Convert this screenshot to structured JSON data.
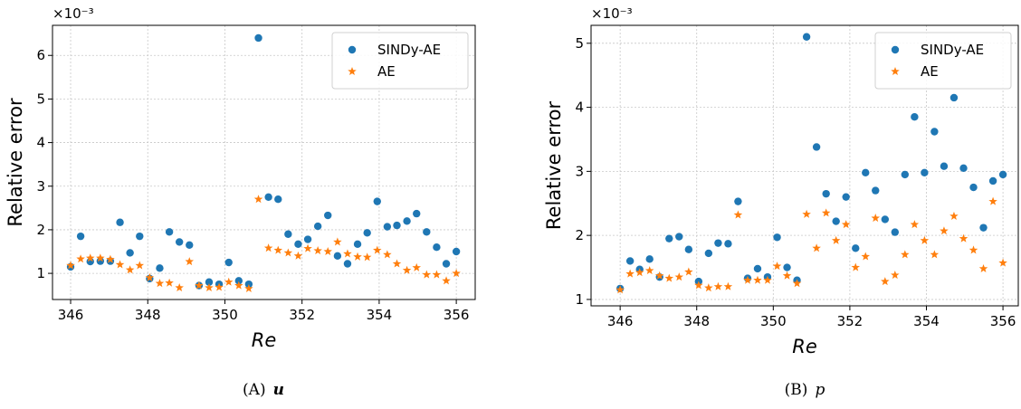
{
  "chart_data": [
    {
      "type": "scatter",
      "xlabel": "Re",
      "ylabel": "Relative error",
      "y_offset_label": "×10⁻³",
      "caption": {
        "label": "(A)",
        "symbol": "u"
      },
      "x": [
        346,
        346.26,
        346.51,
        346.77,
        347.03,
        347.28,
        347.54,
        347.79,
        348.05,
        348.31,
        348.56,
        348.82,
        349.08,
        349.33,
        349.59,
        349.85,
        350.1,
        350.36,
        350.62,
        350.87,
        351.13,
        351.38,
        351.64,
        351.9,
        352.15,
        352.41,
        352.67,
        352.92,
        353.18,
        353.44,
        353.69,
        353.95,
        354.21,
        354.46,
        354.72,
        354.97,
        355.23,
        355.49,
        355.74,
        356
      ],
      "series": [
        {
          "name": "SINDy-AE",
          "color": "#1f77b4",
          "marker": "o",
          "values": [
            1.15,
            1.85,
            1.27,
            1.28,
            1.28,
            2.17,
            1.47,
            1.85,
            0.88,
            1.12,
            1.95,
            1.72,
            1.65,
            0.72,
            0.8,
            0.75,
            1.25,
            0.83,
            0.75,
            6.4,
            2.75,
            2.7,
            1.9,
            1.67,
            1.78,
            2.08,
            2.33,
            1.4,
            1.22,
            1.67,
            1.93,
            2.65,
            2.07,
            2.1,
            2.2,
            2.37,
            1.95,
            1.6,
            1.22,
            1.5
          ]
        },
        {
          "name": "AE",
          "color": "#ff7f0e",
          "marker": "*",
          "values": [
            1.18,
            1.33,
            1.35,
            1.35,
            1.32,
            1.2,
            1.08,
            1.18,
            0.9,
            0.77,
            0.78,
            0.67,
            1.27,
            0.72,
            0.67,
            0.68,
            0.8,
            0.72,
            0.65,
            2.7,
            1.58,
            1.53,
            1.47,
            1.4,
            1.57,
            1.52,
            1.5,
            1.72,
            1.45,
            1.38,
            1.37,
            1.53,
            1.43,
            1.22,
            1.07,
            1.13,
            0.97,
            0.97,
            0.83,
            1.0
          ]
        }
      ],
      "xlim": [
        345.53,
        356.49
      ],
      "xticks": [
        346,
        348,
        350,
        352,
        354,
        356
      ],
      "ylim": [
        0.4,
        6.69
      ],
      "yticks": [
        1,
        2,
        3,
        4,
        5,
        6
      ],
      "grid": true,
      "legend": "upper right"
    },
    {
      "type": "scatter",
      "xlabel": "Re",
      "ylabel": "Relative error",
      "y_offset_label": "×10⁻³",
      "caption": {
        "label": "(B)",
        "symbol": "p"
      },
      "x": [
        346,
        346.26,
        346.51,
        346.77,
        347.03,
        347.28,
        347.54,
        347.79,
        348.05,
        348.31,
        348.56,
        348.82,
        349.08,
        349.33,
        349.59,
        349.85,
        350.1,
        350.36,
        350.62,
        350.87,
        351.13,
        351.38,
        351.64,
        351.9,
        352.15,
        352.41,
        352.67,
        352.92,
        353.18,
        353.44,
        353.69,
        353.95,
        354.21,
        354.46,
        354.72,
        354.97,
        355.23,
        355.49,
        355.74,
        356
      ],
      "series": [
        {
          "name": "SINDy-AE",
          "color": "#1f77b4",
          "marker": "o",
          "values": [
            1.17,
            1.6,
            1.47,
            1.63,
            1.35,
            1.95,
            1.98,
            1.78,
            1.28,
            1.72,
            1.88,
            1.87,
            2.53,
            1.33,
            1.48,
            1.35,
            1.97,
            1.5,
            1.3,
            5.1,
            3.38,
            2.65,
            2.22,
            2.6,
            1.8,
            2.98,
            2.7,
            2.25,
            2.05,
            2.95,
            3.85,
            2.98,
            3.62,
            3.08,
            4.15,
            3.05,
            2.75,
            2.12,
            2.85,
            2.95
          ]
        },
        {
          "name": "AE",
          "color": "#ff7f0e",
          "marker": "*",
          "values": [
            1.15,
            1.4,
            1.42,
            1.45,
            1.37,
            1.33,
            1.35,
            1.43,
            1.22,
            1.18,
            1.2,
            1.2,
            2.32,
            1.3,
            1.3,
            1.3,
            1.52,
            1.37,
            1.25,
            2.33,
            1.8,
            2.35,
            1.92,
            2.17,
            1.5,
            1.67,
            2.27,
            1.28,
            1.38,
            1.7,
            2.17,
            1.92,
            1.7,
            2.07,
            2.3,
            1.95,
            1.77,
            1.48,
            2.53,
            1.57
          ]
        }
      ],
      "xlim": [
        345.24,
        356.4
      ],
      "xticks": [
        346,
        348,
        350,
        352,
        354,
        356
      ],
      "ylim": [
        0.9,
        5.28
      ],
      "yticks": [
        1,
        2,
        3,
        4,
        5
      ],
      "grid": true,
      "legend": "upper right"
    }
  ]
}
